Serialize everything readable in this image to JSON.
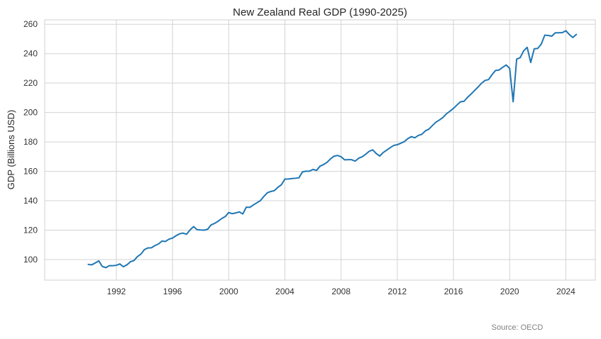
{
  "chart_data": {
    "type": "line",
    "title": "New Zealand Real GDP (1990-2025)",
    "xlabel": "",
    "ylabel": "GDP (Billions USD)",
    "xlim": [
      1986.9,
      2026.1
    ],
    "ylim": [
      86,
      263
    ],
    "xticks": [
      1992,
      1996,
      2000,
      2004,
      2008,
      2012,
      2016,
      2020,
      2024
    ],
    "yticks": [
      100,
      120,
      140,
      160,
      180,
      200,
      220,
      240,
      260
    ],
    "grid": true,
    "series": [
      {
        "color": "#1f77b4",
        "x": [
          1990.0,
          1990.25,
          1990.5,
          1990.75,
          1991.0,
          1991.25,
          1991.5,
          1991.75,
          1992.0,
          1992.25,
          1992.5,
          1992.75,
          1993.0,
          1993.25,
          1993.5,
          1993.75,
          1994.0,
          1994.25,
          1994.5,
          1994.75,
          1995.0,
          1995.25,
          1995.5,
          1995.75,
          1996.0,
          1996.25,
          1996.5,
          1996.75,
          1997.0,
          1997.25,
          1997.5,
          1997.75,
          1998.0,
          1998.25,
          1998.5,
          1998.75,
          1999.0,
          1999.25,
          1999.5,
          1999.75,
          2000.0,
          2000.25,
          2000.5,
          2000.75,
          2001.0,
          2001.25,
          2001.5,
          2001.75,
          2002.0,
          2002.25,
          2002.5,
          2002.75,
          2003.0,
          2003.25,
          2003.5,
          2003.75,
          2004.0,
          2004.25,
          2004.5,
          2004.75,
          2005.0,
          2005.25,
          2005.5,
          2005.75,
          2006.0,
          2006.25,
          2006.5,
          2006.75,
          2007.0,
          2007.25,
          2007.5,
          2007.75,
          2008.0,
          2008.25,
          2008.5,
          2008.75,
          2009.0,
          2009.25,
          2009.5,
          2009.75,
          2010.0,
          2010.25,
          2010.5,
          2010.75,
          2011.0,
          2011.25,
          2011.5,
          2011.75,
          2012.0,
          2012.25,
          2012.5,
          2012.75,
          2013.0,
          2013.25,
          2013.5,
          2013.75,
          2014.0,
          2014.25,
          2014.5,
          2014.75,
          2015.0,
          2015.25,
          2015.5,
          2015.75,
          2016.0,
          2016.25,
          2016.5,
          2016.75,
          2017.0,
          2017.25,
          2017.5,
          2017.75,
          2018.0,
          2018.25,
          2018.5,
          2018.75,
          2019.0,
          2019.25,
          2019.5,
          2019.75,
          2020.0,
          2020.25,
          2020.5,
          2020.75,
          2021.0,
          2021.25,
          2021.5,
          2021.75,
          2022.0,
          2022.25,
          2022.5,
          2022.75,
          2023.0,
          2023.25,
          2023.5,
          2023.75,
          2024.0,
          2024.25,
          2024.5,
          2024.75
        ],
        "values": [
          96.7,
          96.4,
          97.7,
          99.1,
          95.3,
          94.5,
          95.8,
          95.8,
          96.1,
          97.0,
          95.1,
          96.4,
          98.5,
          99.3,
          102.0,
          103.7,
          106.8,
          107.9,
          108.0,
          109.5,
          110.6,
          112.6,
          112.3,
          113.9,
          114.6,
          116.2,
          117.5,
          118.0,
          117.2,
          120.2,
          122.4,
          120.3,
          120.1,
          120.0,
          120.6,
          123.6,
          124.6,
          126.1,
          127.9,
          129.2,
          132.0,
          131.2,
          131.7,
          132.4,
          131.0,
          135.6,
          135.5,
          137.1,
          138.6,
          140.0,
          142.9,
          145.4,
          146.3,
          146.9,
          149.1,
          150.9,
          154.7,
          154.8,
          155.1,
          155.3,
          155.6,
          159.6,
          160.1,
          160.1,
          161.3,
          160.6,
          163.5,
          164.6,
          166.1,
          168.5,
          170.3,
          170.8,
          169.9,
          167.8,
          167.9,
          167.9,
          166.9,
          168.9,
          169.9,
          171.6,
          173.6,
          174.6,
          172.1,
          170.4,
          172.8,
          174.4,
          176.1,
          177.6,
          178.1,
          179.1,
          180.2,
          182.2,
          183.6,
          182.8,
          184.4,
          185.2,
          187.5,
          188.7,
          191.1,
          193.4,
          194.9,
          196.6,
          199.1,
          200.9,
          202.8,
          205.1,
          207.3,
          207.6,
          210.3,
          212.5,
          214.9,
          217.3,
          219.9,
          221.8,
          222.4,
          225.8,
          228.6,
          228.9,
          230.7,
          232.3,
          230.1,
          207.3,
          236.3,
          237.3,
          242.0,
          244.3,
          234.0,
          243.3,
          243.6,
          246.5,
          252.6,
          252.4,
          251.9,
          254.2,
          254.2,
          254.3,
          255.6,
          253.0,
          251.0,
          253.1
        ]
      }
    ],
    "annotation": "Source: OECD"
  }
}
